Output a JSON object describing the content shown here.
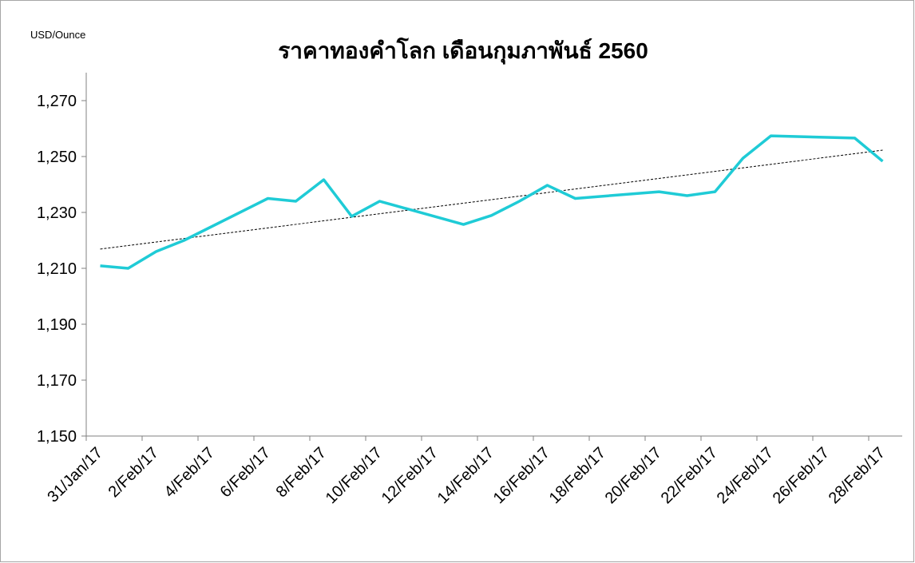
{
  "chart_data": {
    "type": "line",
    "title": "ราคาทองคำโลก เดือนกุมภาพันธ์ 2560",
    "y_axis_label": "USD/Ounce",
    "x": [
      "2017-01-31",
      "2017-02-01",
      "2017-02-02",
      "2017-02-03",
      "2017-02-06",
      "2017-02-07",
      "2017-02-08",
      "2017-02-09",
      "2017-02-10",
      "2017-02-13",
      "2017-02-14",
      "2017-02-15",
      "2017-02-16",
      "2017-02-17",
      "2017-02-20",
      "2017-02-21",
      "2017-02-22",
      "2017-02-23",
      "2017-02-24",
      "2017-02-27",
      "2017-02-28"
    ],
    "series": [
      {
        "color": "#1fcbd6",
        "values": [
          1210.9,
          1210.0,
          1216.0,
          1220.0,
          1235.0,
          1234.0,
          1241.7,
          1228.6,
          1234.0,
          1225.7,
          1228.9,
          1234.0,
          1239.7,
          1235.0,
          1237.4,
          1236.0,
          1237.4,
          1249.4,
          1257.4,
          1256.6,
          1248.3
        ]
      }
    ],
    "trendline": true,
    "xlim": [
      "2017-01-31",
      "2017-02-28"
    ],
    "xticks": [
      {
        "value": "2017-01-31",
        "label": "31/Jan/17"
      },
      {
        "value": "2017-02-02",
        "label": "2/Feb/17"
      },
      {
        "value": "2017-02-04",
        "label": "4/Feb/17"
      },
      {
        "value": "2017-02-06",
        "label": "6/Feb/17"
      },
      {
        "value": "2017-02-08",
        "label": "8/Feb/17"
      },
      {
        "value": "2017-02-10",
        "label": "10/Feb/17"
      },
      {
        "value": "2017-02-12",
        "label": "12/Feb/17"
      },
      {
        "value": "2017-02-14",
        "label": "14/Feb/17"
      },
      {
        "value": "2017-02-16",
        "label": "16/Feb/17"
      },
      {
        "value": "2017-02-18",
        "label": "18/Feb/17"
      },
      {
        "value": "2017-02-20",
        "label": "20/Feb/17"
      },
      {
        "value": "2017-02-22",
        "label": "22/Feb/17"
      },
      {
        "value": "2017-02-24",
        "label": "24/Feb/17"
      },
      {
        "value": "2017-02-26",
        "label": "26/Feb/17"
      },
      {
        "value": "2017-02-28",
        "label": "28/Feb/17"
      }
    ],
    "ylim": [
      1150,
      1270
    ],
    "yticks": [
      {
        "value": 1150,
        "label": "1,150"
      },
      {
        "value": 1170,
        "label": "1,170"
      },
      {
        "value": 1190,
        "label": "1,190"
      },
      {
        "value": 1210,
        "label": "1,210"
      },
      {
        "value": 1230,
        "label": "1,230"
      },
      {
        "value": 1250,
        "label": "1,250"
      },
      {
        "value": 1270,
        "label": "1,270"
      }
    ]
  }
}
